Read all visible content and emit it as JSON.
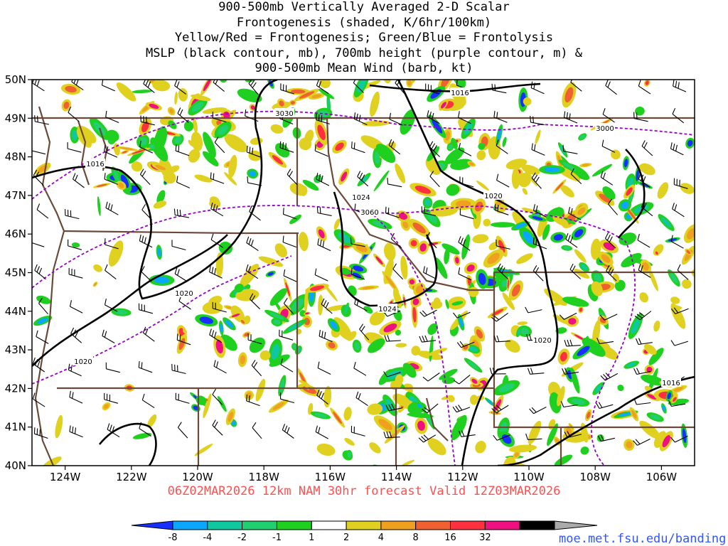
{
  "title": {
    "line1": "900-500mb Vertically Averaged 2-D Scalar",
    "line2": "Frontogenesis (shaded, K/6hr/100km)",
    "line3": "Yellow/Red = Frontogenesis;  Green/Blue = Frontolysis",
    "line4": "MSLP (black contour, mb), 700mb height (purple contour, m) &",
    "line5": "900-500mb Mean Wind (barb, kt)"
  },
  "subtitle": "06Z02MAR2026 12km NAM 30hr forecast Valid 12Z03MAR2026",
  "credit": "moe.met.fsu.edu/banding",
  "map": {
    "lon_range": [
      -125,
      -105
    ],
    "lat_range": [
      40,
      50
    ],
    "lat_ticks": [
      "40N",
      "41N",
      "42N",
      "43N",
      "44N",
      "45N",
      "46N",
      "47N",
      "48N",
      "49N",
      "50N"
    ],
    "lon_ticks": [
      "124W",
      "122W",
      "120W",
      "118W",
      "116W",
      "114W",
      "112W",
      "110W",
      "108W",
      "106W"
    ]
  },
  "mslp_labels": [
    "1016",
    "1016",
    "1020",
    "1020",
    "1020",
    "1024",
    "1024",
    "1020",
    "1016"
  ],
  "height_labels": [
    "3030",
    "3060",
    "3000"
  ],
  "colorbar": {
    "labels": [
      "-8",
      "-4",
      "-2",
      "-1",
      "1",
      "2",
      "4",
      "8",
      "16",
      "32"
    ],
    "colors": [
      "#1530ff",
      "#0ba7ff",
      "#10c8a0",
      "#20d070",
      "#20d020",
      "#ffffff",
      "#e0d020",
      "#f0a020",
      "#f06030",
      "#ff3040",
      "#f01080",
      "#000000",
      "#aaaaaa"
    ]
  },
  "colors": {
    "border": "#6b4a3a",
    "mslp": "#000000",
    "height": "#9900cc",
    "subtitle": "#ff5050",
    "credit": "#3355ff"
  }
}
